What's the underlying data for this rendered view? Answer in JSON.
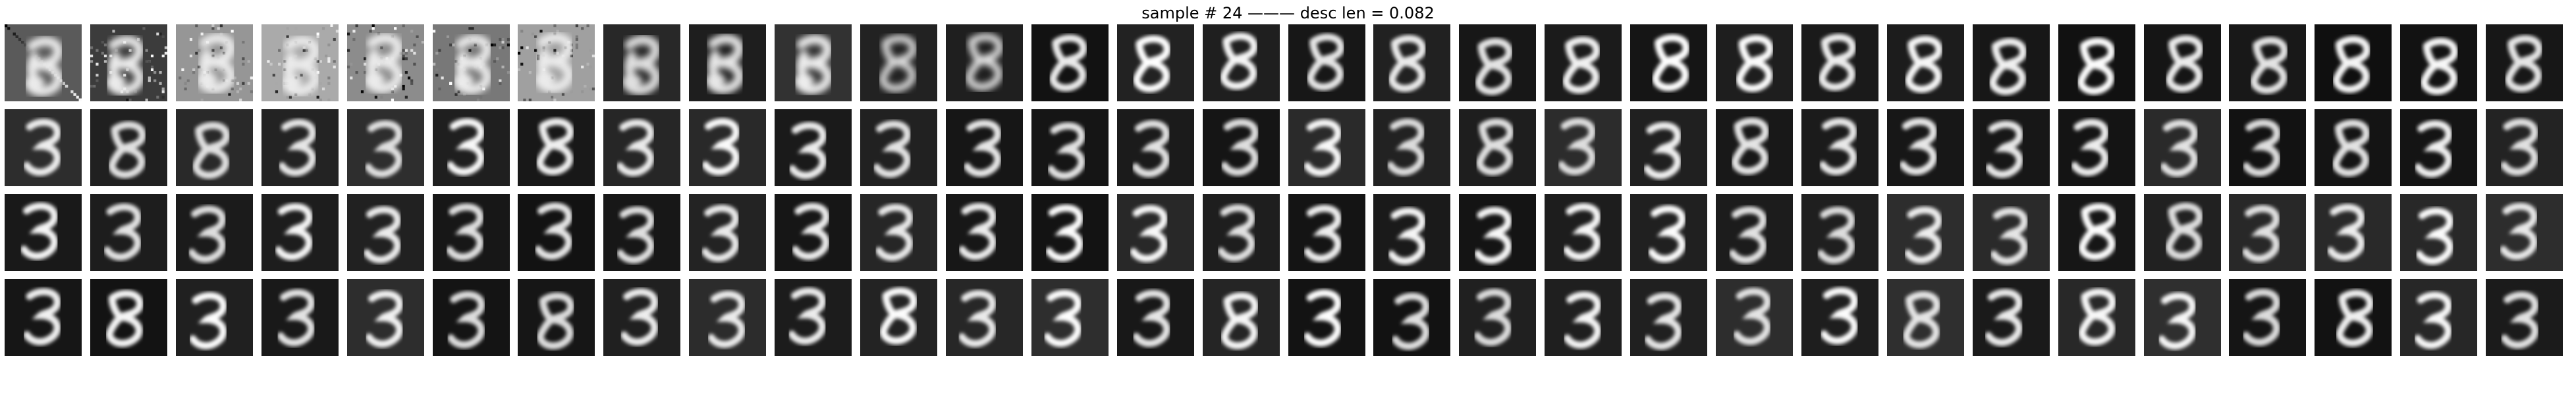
{
  "title": "sample # 24 ——— desc len = 0.082",
  "grid": {
    "rows": 4,
    "cols": 30,
    "content": "handwritten digit 3 reconstructions in grayscale"
  }
}
